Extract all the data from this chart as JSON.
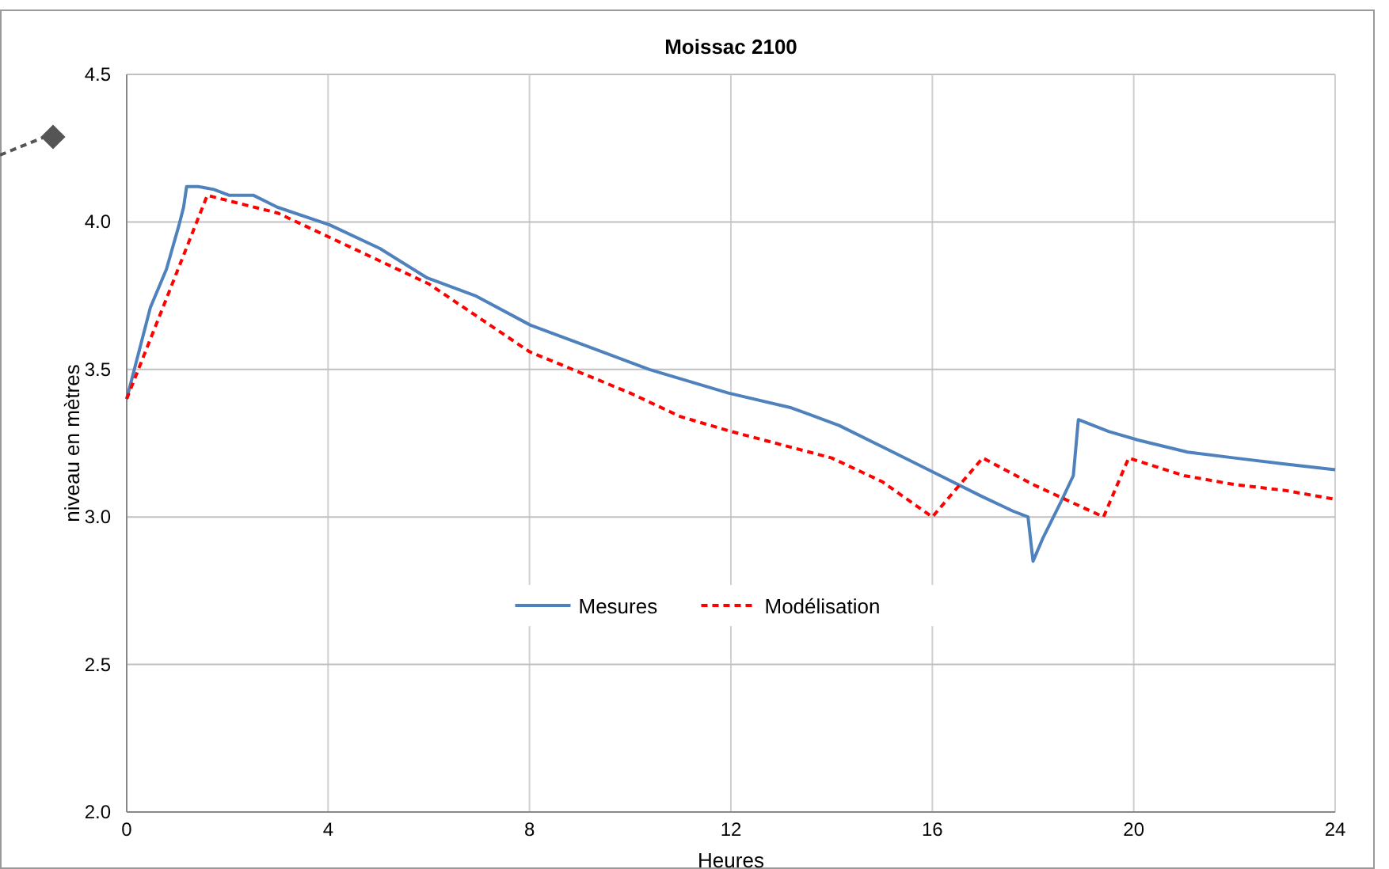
{
  "chart_data": {
    "type": "line",
    "title": "Moissac 2100",
    "xlabel": "Heures",
    "ylabel": "niveau en mètres",
    "xlim": [
      0,
      24
    ],
    "xticks": [
      0,
      4,
      8,
      12,
      16,
      20,
      24
    ],
    "ylim": [
      2,
      4.5
    ],
    "yticks": [
      {
        "value": 2,
        "label": "2.0"
      },
      {
        "value": 2.5,
        "label": "2.5"
      },
      {
        "value": 3,
        "label": "3.0"
      },
      {
        "value": 3.5,
        "label": "3.5"
      },
      {
        "value": 4,
        "label": "4.0"
      },
      {
        "value": 4.5,
        "label": "4.5"
      }
    ],
    "grid": true,
    "legend": "center",
    "marker": "none",
    "series": [
      {
        "name": "Mesures",
        "color": "#4f81bd",
        "line_style": "solid",
        "x": [
          0,
          0.47,
          0.79,
          1.04,
          1.13,
          1.19,
          1.42,
          1.73,
          2.04,
          2.52,
          2.99,
          4.03,
          5.03,
          5.97,
          6.92,
          8.02,
          9.12,
          10.38,
          11.95,
          13.2,
          14.15,
          15.1,
          16.04,
          16.98,
          17.6,
          17.9,
          18.0,
          18.2,
          18.55,
          18.8,
          18.9,
          19.5,
          20.1,
          21.07,
          22.0,
          22.96,
          24
        ],
        "values": [
          3.4,
          3.71,
          3.84,
          3.99,
          4.05,
          4.12,
          4.12,
          4.11,
          4.09,
          4.09,
          4.05,
          3.99,
          3.91,
          3.81,
          3.75,
          3.65,
          3.58,
          3.5,
          3.42,
          3.37,
          3.31,
          3.23,
          3.15,
          3.07,
          3.02,
          3.0,
          2.85,
          2.93,
          3.05,
          3.14,
          3.33,
          3.29,
          3.26,
          3.22,
          3.2,
          3.18,
          3.16
        ]
      },
      {
        "name": "Modélisation",
        "color": "#ff0000",
        "line_style": "dashed",
        "x": [
          0,
          1.6,
          3,
          4,
          6,
          8,
          10,
          11,
          12,
          14,
          15,
          16,
          17,
          18,
          19.4,
          19.9,
          21,
          22,
          23,
          24
        ],
        "values": [
          3.4,
          4.09,
          4.03,
          3.95,
          3.79,
          3.56,
          3.42,
          3.34,
          3.29,
          3.2,
          3.12,
          3.0,
          3.2,
          3.11,
          3.0,
          3.2,
          3.14,
          3.11,
          3.09,
          3.06
        ]
      }
    ]
  }
}
